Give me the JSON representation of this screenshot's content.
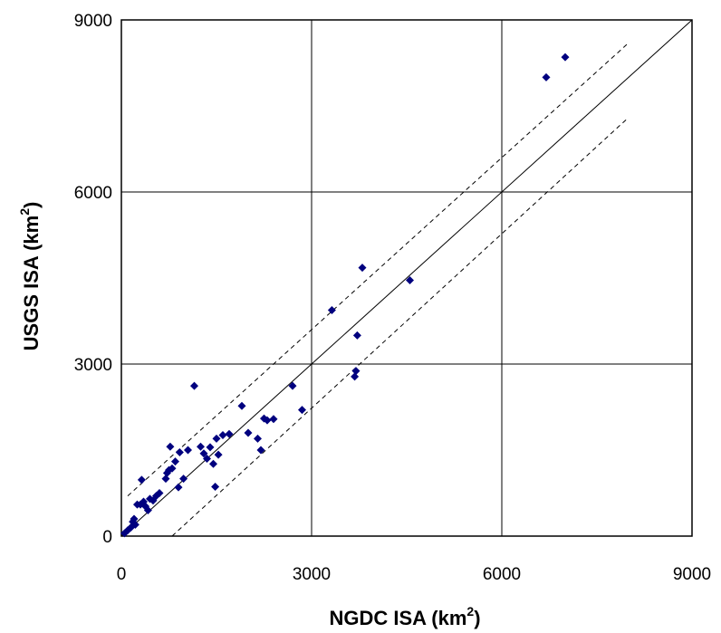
{
  "chart_data": {
    "type": "scatter",
    "xlabel": "NGDC ISA (km",
    "xlabel_sup": "2",
    "xlabel_tail": ")",
    "ylabel": "USGS ISA (km",
    "ylabel_sup": "2",
    "ylabel_tail": ")",
    "xlim": [
      0,
      9000
    ],
    "ylim": [
      0,
      9000
    ],
    "xticks": [
      0,
      3000,
      6000,
      9000
    ],
    "yticks": [
      0,
      3000,
      6000,
      9000
    ],
    "x_tick_labels": [
      "0",
      "3000",
      "6000",
      "9000"
    ],
    "y_tick_labels": [
      "0",
      "3000",
      "6000",
      "9000"
    ],
    "grid": true,
    "marker_color": "#00007f",
    "marker_shape": "diamond",
    "reference_lines": [
      {
        "style": "solid",
        "points": [
          [
            0,
            0
          ],
          [
            9000,
            9000
          ]
        ]
      },
      {
        "style": "dashed",
        "points": [
          [
            100,
            700
          ],
          [
            8000,
            8600
          ]
        ]
      },
      {
        "style": "dashed",
        "points": [
          [
            800,
            0
          ],
          [
            8000,
            7300
          ]
        ]
      }
    ],
    "points": [
      [
        50,
        50
      ],
      [
        100,
        100
      ],
      [
        150,
        150
      ],
      [
        180,
        250
      ],
      [
        200,
        300
      ],
      [
        220,
        200
      ],
      [
        250,
        550
      ],
      [
        300,
        550
      ],
      [
        320,
        980
      ],
      [
        350,
        600
      ],
      [
        380,
        520
      ],
      [
        420,
        450
      ],
      [
        450,
        650
      ],
      [
        500,
        620
      ],
      [
        550,
        700
      ],
      [
        600,
        750
      ],
      [
        700,
        1000
      ],
      [
        720,
        1100
      ],
      [
        750,
        1150
      ],
      [
        770,
        1560
      ],
      [
        800,
        1180
      ],
      [
        850,
        1300
      ],
      [
        900,
        850
      ],
      [
        920,
        1460
      ],
      [
        980,
        1000
      ],
      [
        1050,
        1500
      ],
      [
        1150,
        2620
      ],
      [
        1250,
        1560
      ],
      [
        1300,
        1440
      ],
      [
        1350,
        1350
      ],
      [
        1400,
        1550
      ],
      [
        1450,
        1260
      ],
      [
        1480,
        860
      ],
      [
        1500,
        1700
      ],
      [
        1530,
        1420
      ],
      [
        1600,
        1760
      ],
      [
        1700,
        1780
      ],
      [
        1900,
        2270
      ],
      [
        2000,
        1800
      ],
      [
        2150,
        1700
      ],
      [
        2200,
        1500
      ],
      [
        2250,
        2050
      ],
      [
        2300,
        2020
      ],
      [
        2400,
        2040
      ],
      [
        2700,
        2620
      ],
      [
        2850,
        2200
      ],
      [
        3320,
        3940
      ],
      [
        3680,
        2780
      ],
      [
        3700,
        2880
      ],
      [
        3720,
        3500
      ],
      [
        3800,
        4680
      ],
      [
        4550,
        4460
      ],
      [
        6700,
        8000
      ],
      [
        7000,
        8350
      ]
    ]
  }
}
